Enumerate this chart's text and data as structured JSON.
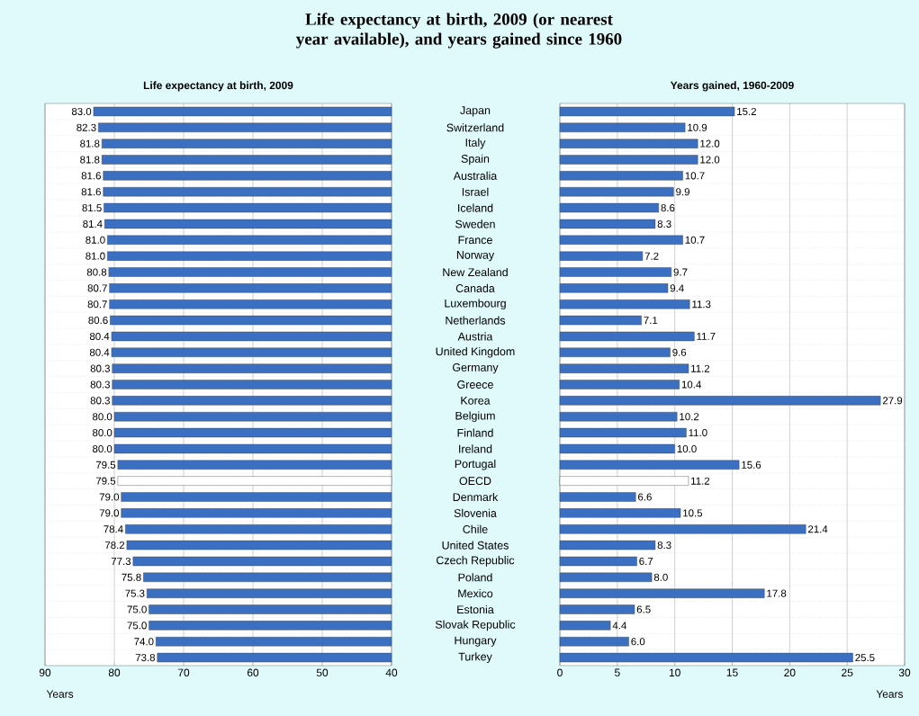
{
  "chart_data": [
    {
      "type": "bar",
      "orientation": "horizontal",
      "title": "Life expectancy at birth, 2009 (or nearest year available), and years gained since 1960",
      "subtitle": "Life expectancy at birth, 2009",
      "xlabel": "Years",
      "categories": [
        "Japan",
        "Switzerland",
        "Italy",
        "Spain",
        "Australia",
        "Israel",
        "Iceland",
        "Sweden",
        "France",
        "Norway",
        "New Zealand",
        "Canada",
        "Luxembourg",
        "Netherlands",
        "Austria",
        "United Kingdom",
        "Germany",
        "Greece",
        "Korea",
        "Belgium",
        "Finland",
        "Ireland",
        "Portugal",
        "OECD",
        "Denmark",
        "Slovenia",
        "Chile",
        "United States",
        "Czech Republic",
        "Poland",
        "Mexico",
        "Estonia",
        "Slovak Republic",
        "Hungary",
        "Turkey"
      ],
      "values": [
        83.0,
        82.3,
        81.8,
        81.8,
        81.6,
        81.6,
        81.5,
        81.4,
        81.0,
        81.0,
        80.8,
        80.7,
        80.7,
        80.6,
        80.4,
        80.4,
        80.3,
        80.3,
        80.3,
        80.0,
        80.0,
        80.0,
        79.5,
        79.5,
        79.0,
        79.0,
        78.4,
        78.2,
        77.3,
        75.8,
        75.3,
        75.0,
        75.0,
        74.0,
        73.8
      ],
      "value_labels": [
        "83.0",
        "82.3",
        "81.8",
        "81.8",
        "81.6",
        "81.6",
        "81.5",
        "81.4",
        "81.0",
        "81.0",
        "80.8",
        "80.7",
        "80.7",
        "80.6",
        "80.4",
        "80.4",
        "80.3",
        "80.3",
        "80.3",
        "80.0",
        "80.0",
        "80.0",
        "79.5",
        "79.5",
        "79.0",
        "79.0",
        "78.4",
        "78.2",
        "77.3",
        "75.8",
        "75.3",
        "75.0",
        "75.0",
        "74.0",
        "73.8"
      ],
      "colors": [
        "#3b6fc2",
        "#3b6fc2",
        "#3b6fc2",
        "#3b6fc2",
        "#3b6fc2",
        "#3b6fc2",
        "#3b6fc2",
        "#3b6fc2",
        "#3b6fc2",
        "#3b6fc2",
        "#3b6fc2",
        "#3b6fc2",
        "#3b6fc2",
        "#3b6fc2",
        "#3b6fc2",
        "#3b6fc2",
        "#3b6fc2",
        "#3b6fc2",
        "#3b6fc2",
        "#3b6fc2",
        "#3b6fc2",
        "#3b6fc2",
        "#3b6fc2",
        "#ffffff",
        "#3b6fc2",
        "#3b6fc2",
        "#3b6fc2",
        "#3b6fc2",
        "#3b6fc2",
        "#3b6fc2",
        "#3b6fc2",
        "#3b6fc2",
        "#3b6fc2",
        "#3b6fc2",
        "#3b6fc2"
      ],
      "xlim": [
        90,
        40
      ],
      "xticks": [
        90,
        80,
        70,
        60,
        50,
        40
      ],
      "grid": true
    },
    {
      "type": "bar",
      "orientation": "horizontal",
      "title": "Years gained, 1960-2009",
      "xlabel": "Years",
      "categories": [
        null,
        null,
        null,
        null,
        null,
        null,
        null,
        null,
        null,
        null,
        null,
        null,
        null,
        null,
        null,
        null,
        null,
        null,
        null,
        null,
        null,
        null,
        null,
        null,
        null,
        null,
        null,
        null,
        null,
        null,
        null,
        null,
        null,
        null,
        null
      ],
      "values": [
        15.2,
        10.9,
        12.0,
        12.0,
        10.7,
        9.9,
        8.6,
        8.3,
        10.7,
        7.2,
        9.7,
        9.4,
        11.3,
        7.1,
        11.7,
        9.6,
        11.2,
        10.4,
        27.9,
        10.2,
        11.0,
        10.0,
        15.6,
        11.2,
        6.6,
        10.5,
        21.4,
        8.3,
        6.7,
        8.0,
        17.8,
        6.5,
        4.4,
        6.0,
        25.5
      ],
      "value_labels": [
        "15.2",
        "10.9",
        "12.0",
        "12.0",
        "10.7",
        "9.9",
        "8.6",
        "8.3",
        "10.7",
        "7.2",
        "9.7",
        "9.4",
        "11.3",
        "7.1",
        "11.7",
        "9.6",
        "11.2",
        "10.4",
        "27.9",
        "10.2",
        "11.0",
        "10.0",
        "15.6",
        "11.2",
        "6.6",
        "10.5",
        "21.4",
        "8.3",
        "6.7",
        "8.0",
        "17.8",
        "6.5",
        "4.4",
        "6.0",
        "25.5"
      ],
      "colors": [
        "#3b6fc2",
        "#3b6fc2",
        "#3b6fc2",
        "#3b6fc2",
        "#3b6fc2",
        "#3b6fc2",
        "#3b6fc2",
        "#3b6fc2",
        "#3b6fc2",
        "#3b6fc2",
        "#3b6fc2",
        "#3b6fc2",
        "#3b6fc2",
        "#3b6fc2",
        "#3b6fc2",
        "#3b6fc2",
        "#3b6fc2",
        "#3b6fc2",
        "#3b6fc2",
        "#3b6fc2",
        "#3b6fc2",
        "#3b6fc2",
        "#3b6fc2",
        "#ffffff",
        "#3b6fc2",
        "#3b6fc2",
        "#3b6fc2",
        "#3b6fc2",
        "#3b6fc2",
        "#3b6fc2",
        "#3b6fc2",
        "#3b6fc2",
        "#3b6fc2",
        "#3b6fc2",
        "#3b6fc2"
      ],
      "xlim": [
        0,
        30
      ],
      "xticks": [
        0,
        5,
        10,
        15,
        20,
        25,
        30
      ],
      "grid": true
    }
  ]
}
